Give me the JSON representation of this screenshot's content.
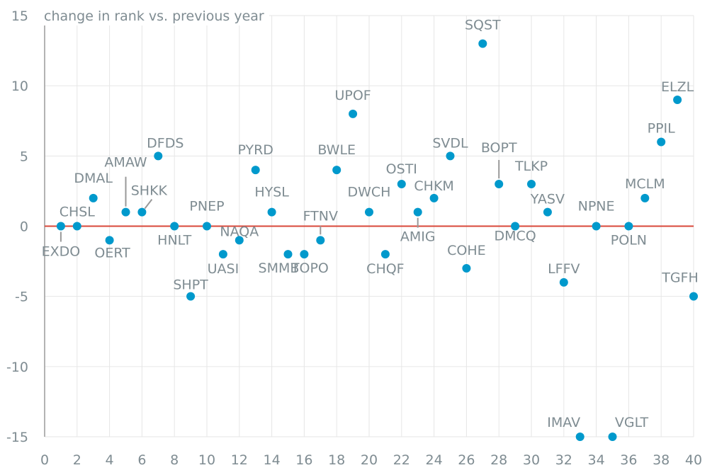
{
  "chart_data": {
    "type": "scatter",
    "title": "change in rank vs. previous year",
    "xlabel": "",
    "ylabel": "change in rank vs. previous year",
    "xlim": [
      0,
      40
    ],
    "ylim": [
      -15,
      15
    ],
    "xticks": [
      "0",
      "2",
      "4",
      "6",
      "8",
      "10",
      "12",
      "14",
      "16",
      "18",
      "20",
      "22",
      "24",
      "26",
      "28",
      "30",
      "32",
      "34",
      "36",
      "38",
      "40"
    ],
    "yticks": [
      "15",
      "10",
      "5",
      "0",
      "-5",
      "-10",
      "-15"
    ],
    "grid": true,
    "reference_line": {
      "y": 0,
      "color": "#d9473a"
    },
    "point_color": "#0099cc",
    "points": [
      {
        "label": "EXDO",
        "x": 1,
        "y": 0
      },
      {
        "label": "CHSL",
        "x": 2,
        "y": 0
      },
      {
        "label": "DMAL",
        "x": 3,
        "y": 2
      },
      {
        "label": "OERT",
        "x": 4,
        "y": -1
      },
      {
        "label": "AMAW",
        "x": 5,
        "y": 1
      },
      {
        "label": "SHKK",
        "x": 6,
        "y": 1
      },
      {
        "label": "DFDS",
        "x": 7,
        "y": 5
      },
      {
        "label": "HNLT",
        "x": 8,
        "y": 0
      },
      {
        "label": "SHPT",
        "x": 9,
        "y": -5
      },
      {
        "label": "PNEP",
        "x": 10,
        "y": 0
      },
      {
        "label": "UASI",
        "x": 11,
        "y": -2
      },
      {
        "label": "NAQA",
        "x": 12,
        "y": -1
      },
      {
        "label": "PYRD",
        "x": 13,
        "y": 4
      },
      {
        "label": "HYSL",
        "x": 14,
        "y": 1
      },
      {
        "label": "SMMB",
        "x": 15,
        "y": -2
      },
      {
        "label": "TOPO",
        "x": 16,
        "y": -2
      },
      {
        "label": "FTNV",
        "x": 17,
        "y": -1
      },
      {
        "label": "BWLE",
        "x": 18,
        "y": 4
      },
      {
        "label": "UPOF",
        "x": 19,
        "y": 8
      },
      {
        "label": "DWCH",
        "x": 20,
        "y": 1
      },
      {
        "label": "CHQF",
        "x": 21,
        "y": -2
      },
      {
        "label": "OSTI",
        "x": 22,
        "y": 3
      },
      {
        "label": "AMIG",
        "x": 23,
        "y": 1
      },
      {
        "label": "CHKM",
        "x": 24,
        "y": 2
      },
      {
        "label": "SVDL",
        "x": 25,
        "y": 5
      },
      {
        "label": "COHE",
        "x": 26,
        "y": -3
      },
      {
        "label": "SQST",
        "x": 27,
        "y": 13
      },
      {
        "label": "BOPT",
        "x": 28,
        "y": 3
      },
      {
        "label": "DMCQ",
        "x": 29,
        "y": 0
      },
      {
        "label": "TLKP",
        "x": 30,
        "y": 3
      },
      {
        "label": "YASV",
        "x": 31,
        "y": 1
      },
      {
        "label": "LFFV",
        "x": 32,
        "y": -4
      },
      {
        "label": "IMAV",
        "x": 33,
        "y": -15
      },
      {
        "label": "NPNE",
        "x": 34,
        "y": 0
      },
      {
        "label": "VGLT",
        "x": 35,
        "y": -15
      },
      {
        "label": "POLN",
        "x": 36,
        "y": 0
      },
      {
        "label": "MCLM",
        "x": 37,
        "y": 2
      },
      {
        "label": "PPIL",
        "x": 38,
        "y": 6
      },
      {
        "label": "ELZL",
        "x": 39,
        "y": 9
      },
      {
        "label": "TGFH",
        "x": 40,
        "y": -5
      }
    ]
  }
}
